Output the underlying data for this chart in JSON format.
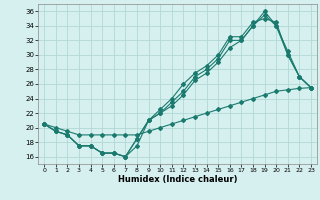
{
  "title": "",
  "xlabel": "Humidex (Indice chaleur)",
  "ylabel": "",
  "background_color": "#d6f0ef",
  "grid_color": "#b0d8d5",
  "line_color": "#1a7a6e",
  "xlim": [
    -0.5,
    23.5
  ],
  "ylim": [
    15,
    37
  ],
  "xticks": [
    0,
    1,
    2,
    3,
    4,
    5,
    6,
    7,
    8,
    9,
    10,
    11,
    12,
    13,
    14,
    15,
    16,
    17,
    18,
    19,
    20,
    21,
    22,
    23
  ],
  "yticks": [
    16,
    18,
    20,
    22,
    24,
    26,
    28,
    30,
    32,
    34,
    36
  ],
  "series": [
    [
      20.5,
      19.5,
      19.0,
      17.5,
      17.5,
      16.5,
      16.5,
      16.0,
      17.5,
      21.0,
      22.0,
      23.5,
      25.0,
      27.0,
      28.0,
      29.5,
      32.0,
      32.0,
      34.0,
      36.0,
      34.0,
      30.0,
      27.0,
      25.5
    ],
    [
      20.5,
      19.5,
      19.0,
      17.5,
      17.5,
      16.5,
      16.5,
      16.0,
      18.5,
      21.0,
      22.5,
      24.0,
      26.0,
      27.5,
      28.5,
      30.0,
      32.5,
      32.5,
      34.5,
      35.0,
      34.5,
      30.0,
      27.0,
      25.5
    ],
    [
      20.5,
      19.5,
      19.0,
      17.5,
      17.5,
      16.5,
      16.5,
      16.0,
      18.5,
      21.0,
      22.0,
      23.0,
      24.5,
      26.5,
      27.5,
      29.0,
      31.0,
      32.0,
      34.0,
      35.5,
      34.0,
      30.5,
      27.0,
      25.5
    ],
    [
      20.5,
      20.0,
      19.5,
      19.0,
      19.0,
      19.0,
      19.0,
      19.0,
      19.0,
      19.5,
      20.0,
      20.5,
      21.0,
      21.5,
      22.0,
      22.5,
      23.0,
      23.5,
      24.0,
      24.5,
      25.0,
      25.2,
      25.4,
      25.5
    ]
  ]
}
